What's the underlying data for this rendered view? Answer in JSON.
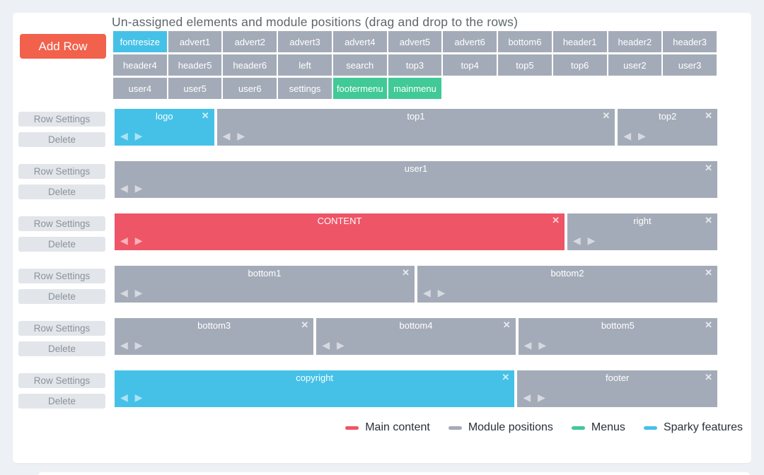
{
  "page": {
    "title": "Un-assigned elements and module positions (drag and drop to the rows)",
    "add_row_label": "Add Row",
    "row_settings_label": "Row Settings",
    "delete_label": "Delete",
    "close_glyph": "✕",
    "arrows_glyph": "◀ ▶"
  },
  "colors": {
    "content": "#ee5566",
    "module": "#a4abb8",
    "menu": "#41c998",
    "sparky": "#45c1e8",
    "add_row_button": "#f2614c"
  },
  "unassigned_elements": [
    {
      "label": "fontresize",
      "type": "sparky"
    },
    {
      "label": "advert1",
      "type": "module"
    },
    {
      "label": "advert2",
      "type": "module"
    },
    {
      "label": "advert3",
      "type": "module"
    },
    {
      "label": "advert4",
      "type": "module"
    },
    {
      "label": "advert5",
      "type": "module"
    },
    {
      "label": "advert6",
      "type": "module"
    },
    {
      "label": "bottom6",
      "type": "module"
    },
    {
      "label": "header1",
      "type": "module"
    },
    {
      "label": "header2",
      "type": "module"
    },
    {
      "label": "header3",
      "type": "module"
    },
    {
      "label": "header4",
      "type": "module"
    },
    {
      "label": "header5",
      "type": "module"
    },
    {
      "label": "header6",
      "type": "module"
    },
    {
      "label": "left",
      "type": "module"
    },
    {
      "label": "search",
      "type": "module"
    },
    {
      "label": "top3",
      "type": "module"
    },
    {
      "label": "top4",
      "type": "module"
    },
    {
      "label": "top5",
      "type": "module"
    },
    {
      "label": "top6",
      "type": "module"
    },
    {
      "label": "user2",
      "type": "module"
    },
    {
      "label": "user3",
      "type": "module"
    },
    {
      "label": "user4",
      "type": "module"
    },
    {
      "label": "user5",
      "type": "module"
    },
    {
      "label": "user6",
      "type": "module"
    },
    {
      "label": "settings",
      "type": "module"
    },
    {
      "label": "footermenu",
      "type": "menu"
    },
    {
      "label": "mainmenu",
      "type": "menu"
    }
  ],
  "rows": [
    {
      "blocks": [
        {
          "label": "logo",
          "span": 2,
          "type": "sparky"
        },
        {
          "label": "top1",
          "span": 8,
          "type": "module"
        },
        {
          "label": "top2",
          "span": 2,
          "type": "module"
        }
      ]
    },
    {
      "blocks": [
        {
          "label": "user1",
          "span": 12,
          "type": "module"
        }
      ]
    },
    {
      "blocks": [
        {
          "label": "CONTENT",
          "span": 9,
          "type": "content"
        },
        {
          "label": "right",
          "span": 3,
          "type": "module"
        }
      ]
    },
    {
      "blocks": [
        {
          "label": "bottom1",
          "span": 6,
          "type": "module"
        },
        {
          "label": "bottom2",
          "span": 6,
          "type": "module"
        }
      ]
    },
    {
      "blocks": [
        {
          "label": "bottom3",
          "span": 4,
          "type": "module"
        },
        {
          "label": "bottom4",
          "span": 4,
          "type": "module"
        },
        {
          "label": "bottom5",
          "span": 4,
          "type": "module"
        }
      ]
    },
    {
      "blocks": [
        {
          "label": "copyright",
          "span": 8,
          "type": "sparky"
        },
        {
          "label": "footer",
          "span": 4,
          "type": "module"
        }
      ]
    }
  ],
  "legend": [
    {
      "label": "Main content",
      "type": "content"
    },
    {
      "label": "Module positions",
      "type": "module"
    },
    {
      "label": "Menus",
      "type": "menu"
    },
    {
      "label": "Sparky features",
      "type": "sparky"
    }
  ]
}
